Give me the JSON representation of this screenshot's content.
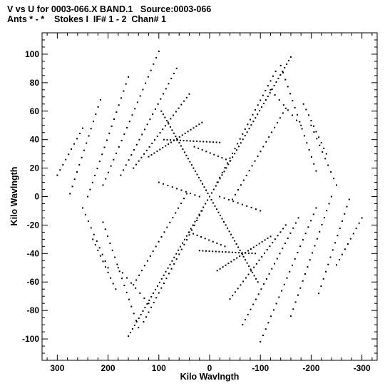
{
  "chart_data": {
    "type": "scatter",
    "title": "V vs U for 0003-066.X BAND.1   Source:0003-066",
    "subtitle": "Ants * - *    Stokes I  IF# 1 - 2  Chan# 1",
    "xlabel": "Kilo Wavlngth",
    "ylabel": "Kilo Wavlngth",
    "xlim": [
      330,
      -330
    ],
    "ylim": [
      -115,
      115
    ],
    "xticks": [
      300,
      200,
      100,
      0,
      -100,
      -200,
      -300
    ],
    "yticks": [
      -100,
      -80,
      -60,
      -40,
      -20,
      0,
      20,
      40,
      60,
      80,
      100
    ],
    "xtick_labels": [
      "300",
      "200",
      "100",
      "0",
      "-100",
      "-200",
      "-300"
    ],
    "ytick_labels": [
      "-100",
      "-80",
      "-60",
      "-40",
      "-20",
      "0",
      "20",
      "40",
      "60",
      "80",
      "100"
    ],
    "grid": false,
    "marker_color": "#000000",
    "series": [
      {
        "tracks": [
          {
            "x0": 0,
            "y0": 0,
            "x1": 160,
            "y1": -98,
            "n": 40
          },
          {
            "x0": 0,
            "y0": 0,
            "x1": -160,
            "y1": 98,
            "n": 40
          },
          {
            "x0": 0,
            "y0": 0,
            "x1": 95,
            "y1": 60,
            "n": 28
          },
          {
            "x0": 0,
            "y0": 0,
            "x1": -95,
            "y1": -60,
            "n": 28
          },
          {
            "x0": 210,
            "y0": 8,
            "x1": 100,
            "y1": 102,
            "n": 22
          },
          {
            "x0": -210,
            "y0": -8,
            "x1": -100,
            "y1": -102,
            "n": 22
          },
          {
            "x0": 175,
            "y0": 15,
            "x1": 65,
            "y1": 90,
            "n": 22
          },
          {
            "x0": -175,
            "y0": -15,
            "x1": -65,
            "y1": -90,
            "n": 22
          },
          {
            "x0": 150,
            "y0": 20,
            "x1": 40,
            "y1": 72,
            "n": 22
          },
          {
            "x0": -150,
            "y0": -20,
            "x1": -40,
            "y1": -72,
            "n": 22
          },
          {
            "x0": 120,
            "y0": 28,
            "x1": 15,
            "y1": 52,
            "n": 20
          },
          {
            "x0": -120,
            "y0": -28,
            "x1": -15,
            "y1": -52,
            "n": 20
          },
          {
            "x0": 90,
            "y0": 40,
            "x1": -20,
            "y1": 38,
            "n": 18
          },
          {
            "x0": -90,
            "y0": -40,
            "x1": 20,
            "y1": -38,
            "n": 18
          },
          {
            "x0": 240,
            "y0": 0,
            "x1": 160,
            "y1": 84,
            "n": 18
          },
          {
            "x0": -240,
            "y0": 0,
            "x1": -160,
            "y1": -84,
            "n": 18
          },
          {
            "x0": 275,
            "y0": 2,
            "x1": 215,
            "y1": 68,
            "n": 14
          },
          {
            "x0": -275,
            "y0": -2,
            "x1": -215,
            "y1": -68,
            "n": 14
          },
          {
            "x0": 300,
            "y0": 15,
            "x1": 250,
            "y1": 48,
            "n": 10
          },
          {
            "x0": -300,
            "y0": -15,
            "x1": -250,
            "y1": -48,
            "n": 10
          },
          {
            "x0": 45,
            "y0": 2,
            "x1": 150,
            "y1": -62,
            "n": 20
          },
          {
            "x0": -45,
            "y0": -2,
            "x1": -150,
            "y1": 62,
            "n": 20
          },
          {
            "x0": 15,
            "y0": -10,
            "x1": 130,
            "y1": -88,
            "n": 24
          },
          {
            "x0": -15,
            "y0": 10,
            "x1": -130,
            "y1": 88,
            "n": 24
          },
          {
            "x0": 210,
            "y0": -18,
            "x1": 140,
            "y1": -92,
            "n": 16
          },
          {
            "x0": -210,
            "y0": 18,
            "x1": -140,
            "y1": 92,
            "n": 16
          },
          {
            "x0": 230,
            "y0": -30,
            "x1": 185,
            "y1": -65,
            "n": 10
          },
          {
            "x0": -230,
            "y0": 30,
            "x1": -185,
            "y1": 65,
            "n": 10
          },
          {
            "x0": 250,
            "y0": -8,
            "x1": 200,
            "y1": -50,
            "n": 10
          },
          {
            "x0": -250,
            "y0": 8,
            "x1": -200,
            "y1": 50,
            "n": 10
          },
          {
            "x0": 100,
            "y0": 10,
            "x1": 20,
            "y1": 0,
            "n": 10
          },
          {
            "x0": -100,
            "y0": -10,
            "x1": -20,
            "y1": 0,
            "n": 10
          },
          {
            "x0": 30,
            "y0": 35,
            "x1": -40,
            "y1": 25,
            "n": 10
          },
          {
            "x0": -30,
            "y0": -35,
            "x1": 40,
            "y1": -25,
            "n": 10
          },
          {
            "x0": 180,
            "y0": -50,
            "x1": 120,
            "y1": -75,
            "n": 8
          },
          {
            "x0": -180,
            "y0": 50,
            "x1": -120,
            "y1": 75,
            "n": 8
          }
        ]
      }
    ]
  }
}
